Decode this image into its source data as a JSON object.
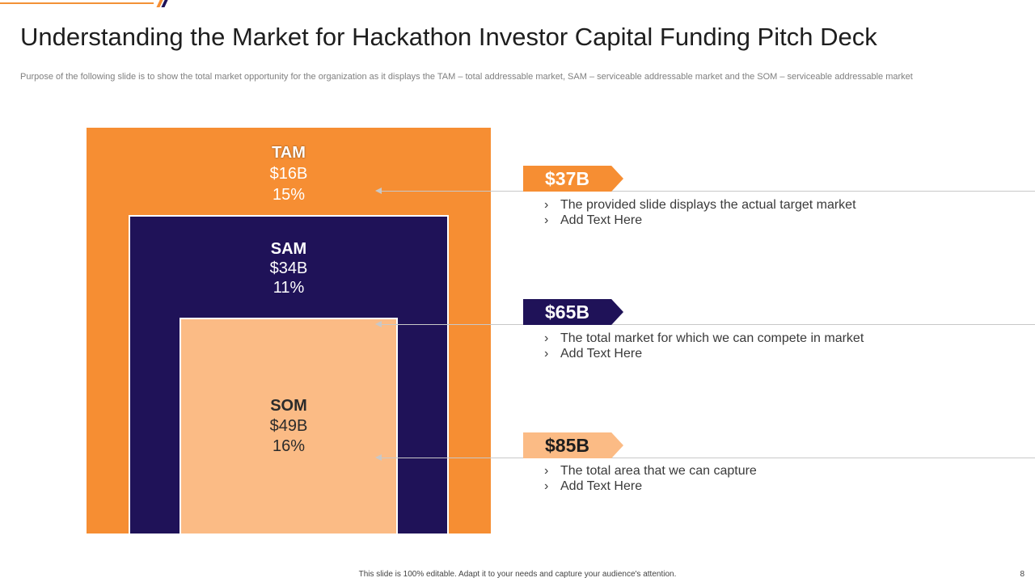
{
  "slide": {
    "title": "Understanding the Market for Hackathon Investor Capital Funding Pitch Deck",
    "subtitle": "Purpose of the following slide is to show the total market opportunity for the organization as it displays the TAM – total addressable market, SAM – serviceable addressable market and the SOM – serviceable addressable market"
  },
  "market": {
    "tam": {
      "name": "TAM",
      "value": "$16B",
      "percent": "15%",
      "color": "#f68e33"
    },
    "sam": {
      "name": "SAM",
      "value": "$34B",
      "percent": "11%",
      "color": "#1f1258"
    },
    "som": {
      "name": "SOM",
      "value": "$49B",
      "percent": "16%",
      "color": "#fbbb85"
    }
  },
  "callouts": [
    {
      "amount": "$37B",
      "bullets": [
        "The provided slide displays the actual target market",
        "Add Text Here"
      ],
      "bullet_icon": "chevron-right-icon"
    },
    {
      "amount": "$65B",
      "bullets": [
        "The total market for which we can compete in market",
        "Add Text Here"
      ],
      "bullet_icon": "chevron-right-icon"
    },
    {
      "amount": "$85B",
      "bullets": [
        "The total area that we can capture",
        "Add Text Here"
      ],
      "bullet_icon": "chevron-right-icon"
    }
  ],
  "footer": {
    "note": "This slide is 100% editable.  Adapt it to your needs and capture your audience's attention.",
    "page_number": "8"
  },
  "colors": {
    "accent_orange": "#f68e33",
    "accent_navy": "#1f1258",
    "accent_peach": "#fbbb85",
    "deco_slash_navy": "#1f1258"
  }
}
